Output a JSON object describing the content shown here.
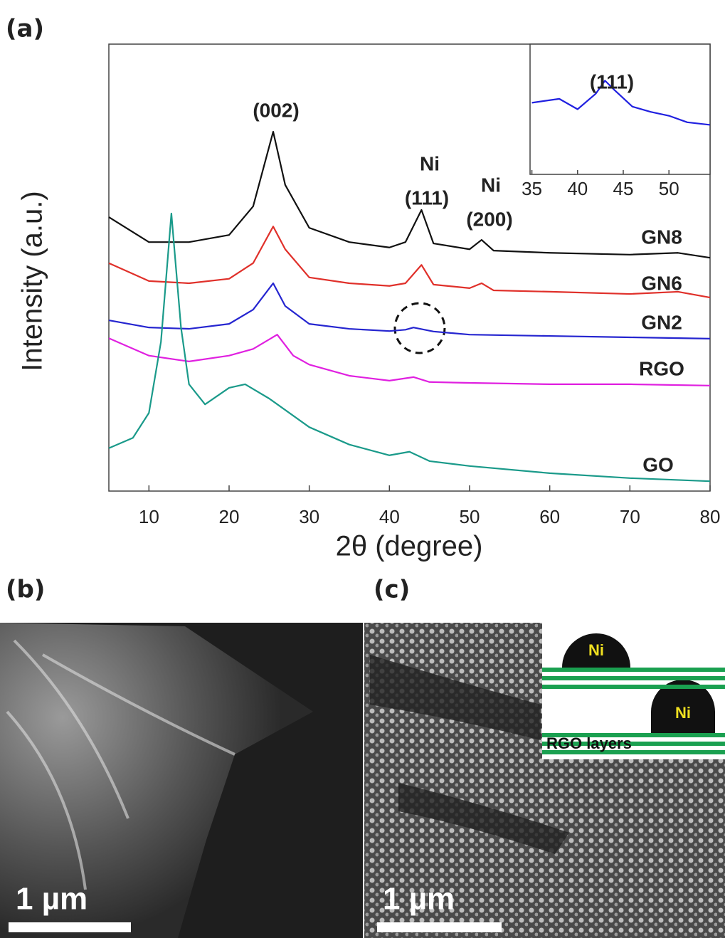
{
  "chart_data": [
    {
      "type": "line",
      "x_label": "2θ (degree)",
      "y_label": "Intensity (a.u.)",
      "xlim": [
        5,
        80
      ],
      "xticks": [
        10,
        20,
        30,
        40,
        50,
        60,
        70,
        80
      ],
      "ylim": [
        0,
        100
      ],
      "annotations": [
        "(002)",
        "Ni",
        "(111)",
        "Ni",
        "(200)"
      ],
      "series": [
        {
          "name": "GN8",
          "color": "#111111",
          "x": [
            5,
            10,
            15,
            20,
            23,
            25.5,
            27,
            30,
            35,
            40,
            42,
            44,
            45.5,
            50,
            51.5,
            53,
            60,
            70,
            76,
            80
          ],
          "values": [
            61.3,
            55.7,
            55.7,
            57.3,
            63.7,
            80.4,
            68.5,
            58.9,
            55.7,
            54.5,
            55.7,
            62.9,
            55.4,
            54.1,
            56.2,
            53.8,
            53.3,
            52.9,
            53.3,
            52.2
          ]
        },
        {
          "name": "GN6",
          "color": "#e0302a",
          "x": [
            5,
            10,
            15,
            20,
            23,
            25.5,
            27,
            30,
            35,
            40,
            42,
            44,
            45.5,
            50,
            51.5,
            53,
            60,
            70,
            76,
            80
          ],
          "values": [
            51.0,
            47.0,
            46.5,
            47.5,
            51.0,
            59.2,
            54.1,
            47.8,
            46.5,
            45.9,
            46.5,
            50.6,
            46.2,
            45.4,
            46.5,
            44.9,
            44.6,
            44.1,
            44.6,
            43.3
          ]
        },
        {
          "name": "GN2",
          "color": "#2525d0",
          "x": [
            5,
            10,
            15,
            20,
            23,
            25.5,
            27,
            30,
            35,
            40,
            42,
            43,
            45.5,
            50,
            60,
            70,
            80
          ],
          "values": [
            38.2,
            36.6,
            36.3,
            37.4,
            40.6,
            46.5,
            41.4,
            37.4,
            36.3,
            35.8,
            36.1,
            36.6,
            35.7,
            35.0,
            34.7,
            34.4,
            34.1
          ]
        },
        {
          "name": "RGO",
          "color": "#e020e0",
          "x": [
            5,
            10,
            15,
            20,
            23,
            26,
            28,
            30,
            35,
            40,
            43,
            45,
            50,
            60,
            70,
            80
          ],
          "values": [
            34.2,
            30.3,
            29.0,
            30.3,
            31.8,
            35.0,
            30.3,
            28.3,
            25.8,
            24.7,
            25.5,
            24.4,
            24.2,
            23.9,
            23.9,
            23.6
          ]
        },
        {
          "name": "GO",
          "color": "#1a9a8a",
          "x": [
            5,
            8,
            10,
            11.5,
            12.8,
            14,
            15,
            17,
            20,
            22,
            25,
            30,
            35,
            40,
            42.5,
            45,
            50,
            60,
            70,
            80
          ],
          "values": [
            9.6,
            11.9,
            17.5,
            33.4,
            62.1,
            36.6,
            23.9,
            19.4,
            23.1,
            23.9,
            20.7,
            14.3,
            10.4,
            8.0,
            8.8,
            6.7,
            5.6,
            4.0,
            2.9,
            2.2
          ]
        }
      ]
    },
    {
      "type": "line",
      "xlim": [
        34.8,
        54.5
      ],
      "xticks": [
        35,
        40,
        45,
        50
      ],
      "ylim": [
        0,
        100
      ],
      "annotations": [
        "(111)"
      ],
      "series": [
        {
          "color": "#2020e0",
          "x": [
            35,
            38,
            40,
            42,
            43,
            44,
            46,
            48,
            50,
            52,
            54.5
          ],
          "values": [
            55,
            58,
            50,
            62,
            72,
            65,
            52,
            48,
            45,
            40,
            38
          ]
        }
      ]
    }
  ],
  "panel_labels": [
    "(a)",
    "(b)",
    "(c)"
  ],
  "sem_b": {
    "scale_bar": "1 µm"
  },
  "sem_c": {
    "scale_bar": "1 µm",
    "schematic": {
      "particles": [
        "Ni",
        "Ni"
      ],
      "layers_label": "RGO layers"
    }
  }
}
